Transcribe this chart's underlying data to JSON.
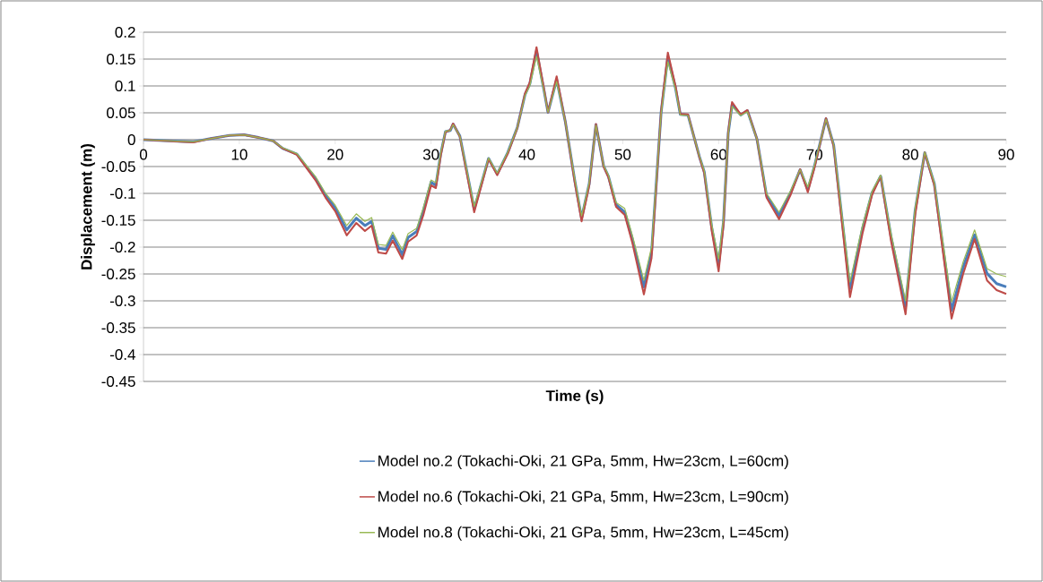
{
  "chart_data": {
    "type": "line",
    "xlabel": "Time (s)",
    "ylabel": "Displacement (m)",
    "x": [
      0,
      5.2,
      7,
      9,
      10.5,
      12,
      13.5,
      14.5,
      16,
      18,
      19,
      20,
      21.2,
      22.2,
      23.1,
      23.8,
      24.5,
      25.3,
      26,
      27,
      27.6,
      28.5,
      29.2,
      30,
      30.5,
      31,
      31.5,
      32,
      32.3,
      33,
      34.5,
      36,
      36.9,
      38,
      39,
      39.8,
      40.3,
      41,
      41.8,
      42.2,
      43.1,
      44,
      45,
      45.7,
      46.5,
      47.2,
      48,
      48.5,
      49.3,
      50.2,
      51,
      52.2,
      53,
      54,
      54.7,
      55.5,
      56,
      56.8,
      58,
      58.5,
      59.3,
      60,
      60.5,
      61,
      61.4,
      62.3,
      63,
      64,
      65,
      66.3,
      67.5,
      68.5,
      69.3,
      70,
      71.2,
      72,
      73.7,
      75,
      76,
      76.9,
      78,
      79.5,
      80.5,
      81.5,
      82.5,
      84.3,
      85.5,
      86.7,
      88,
      89,
      90
    ],
    "series": [
      {
        "name": "Model no.2 (Tokachi-Oki, 21 GPa, 5mm, Hw=23cm, L=60cm)",
        "color": "#4a7ebb",
        "values": [
          0,
          -0.004,
          0.002,
          0.008,
          0.009,
          0.004,
          -0.002,
          -0.016,
          -0.027,
          -0.074,
          -0.104,
          -0.127,
          -0.168,
          -0.146,
          -0.16,
          -0.152,
          -0.202,
          -0.204,
          -0.179,
          -0.214,
          -0.182,
          -0.171,
          -0.132,
          -0.079,
          -0.085,
          -0.027,
          0.015,
          0.017,
          0.029,
          0.007,
          -0.129,
          -0.035,
          -0.064,
          -0.024,
          0.023,
          0.084,
          0.104,
          0.165,
          0.09,
          0.051,
          0.112,
          0.034,
          -0.077,
          -0.146,
          -0.082,
          0.028,
          -0.049,
          -0.068,
          -0.121,
          -0.135,
          -0.185,
          -0.274,
          -0.21,
          0.051,
          0.154,
          0.096,
          0.047,
          0.046,
          -0.032,
          -0.06,
          -0.166,
          -0.232,
          -0.154,
          0.012,
          0.065,
          0.046,
          0.054,
          0.001,
          -0.104,
          -0.141,
          -0.099,
          -0.056,
          -0.093,
          -0.049,
          0.039,
          -0.01,
          -0.277,
          -0.166,
          -0.099,
          -0.068,
          -0.182,
          -0.31,
          -0.132,
          -0.024,
          -0.082,
          -0.318,
          -0.238,
          -0.177,
          -0.249,
          -0.268,
          -0.274
        ]
      },
      {
        "name": "Model no.6 (Tokachi-Oki, 21 GPa, 5mm, Hw=23cm, L=90cm)",
        "color": "#be4b48",
        "values": [
          0,
          -0.005,
          0.002,
          0.008,
          0.009,
          0.004,
          -0.002,
          -0.016,
          -0.028,
          -0.077,
          -0.108,
          -0.133,
          -0.178,
          -0.155,
          -0.17,
          -0.16,
          -0.21,
          -0.212,
          -0.188,
          -0.222,
          -0.19,
          -0.178,
          -0.14,
          -0.085,
          -0.09,
          -0.03,
          0.014,
          0.018,
          0.03,
          0.006,
          -0.135,
          -0.036,
          -0.066,
          -0.026,
          0.022,
          0.086,
          0.107,
          0.172,
          0.092,
          0.051,
          0.118,
          0.034,
          -0.08,
          -0.152,
          -0.085,
          0.029,
          -0.05,
          -0.07,
          -0.125,
          -0.14,
          -0.192,
          -0.288,
          -0.22,
          0.053,
          0.162,
          0.1,
          0.048,
          0.047,
          -0.033,
          -0.062,
          -0.172,
          -0.245,
          -0.16,
          0.014,
          0.07,
          0.047,
          0.055,
          0.001,
          -0.108,
          -0.148,
          -0.103,
          -0.055,
          -0.098,
          -0.052,
          0.04,
          -0.012,
          -0.293,
          -0.175,
          -0.103,
          -0.068,
          -0.19,
          -0.325,
          -0.14,
          -0.024,
          -0.085,
          -0.333,
          -0.25,
          -0.185,
          -0.262,
          -0.28,
          -0.287
        ]
      },
      {
        "name": "Model no.8 (Tokachi-Oki, 21 GPa, 5mm, Hw=23cm, L=45cm)",
        "color": "#98b954",
        "values": [
          0,
          -0.004,
          0.002,
          0.008,
          0.009,
          0.004,
          -0.002,
          -0.015,
          -0.026,
          -0.07,
          -0.1,
          -0.122,
          -0.16,
          -0.138,
          -0.152,
          -0.145,
          -0.195,
          -0.197,
          -0.172,
          -0.205,
          -0.175,
          -0.165,
          -0.126,
          -0.075,
          -0.08,
          -0.025,
          0.016,
          0.017,
          0.028,
          0.007,
          -0.124,
          -0.034,
          -0.062,
          -0.023,
          0.023,
          0.082,
          0.1,
          0.155,
          0.088,
          0.051,
          0.108,
          0.034,
          -0.074,
          -0.142,
          -0.08,
          0.027,
          -0.048,
          -0.066,
          -0.117,
          -0.128,
          -0.178,
          -0.262,
          -0.2,
          0.049,
          0.145,
          0.093,
          0.046,
          0.045,
          -0.031,
          -0.058,
          -0.16,
          -0.222,
          -0.148,
          0.011,
          0.062,
          0.045,
          0.052,
          0.001,
          -0.1,
          -0.135,
          -0.095,
          -0.056,
          -0.088,
          -0.047,
          0.038,
          -0.009,
          -0.265,
          -0.16,
          -0.096,
          -0.066,
          -0.176,
          -0.3,
          -0.127,
          -0.023,
          -0.08,
          -0.302,
          -0.228,
          -0.168,
          -0.24,
          -0.25,
          -0.255
        ]
      }
    ],
    "xlim": [
      0,
      90
    ],
    "xticks": [
      0,
      10,
      20,
      30,
      40,
      50,
      60,
      70,
      80,
      90
    ],
    "ylim": [
      -0.45,
      0.2
    ],
    "yticks": [
      -0.45,
      -0.4,
      -0.35,
      -0.3,
      -0.25,
      -0.2,
      -0.15,
      -0.1,
      -0.05,
      0,
      0.05,
      0.1,
      0.15,
      0.2
    ],
    "grid": "y",
    "legend": "bottom",
    "line_style": "solid"
  }
}
